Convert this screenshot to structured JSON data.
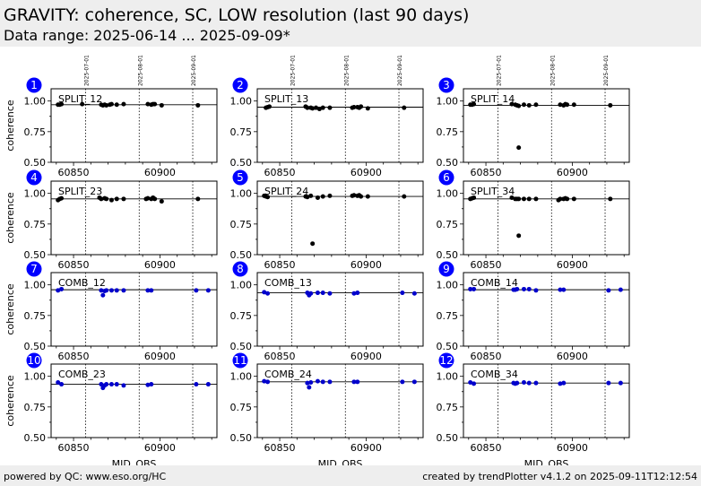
{
  "header": {
    "title": "GRAVITY: coherence, SC, LOW resolution (last 90 days)",
    "subtitle": "Data range: 2025-06-14 ... 2025-09-09*"
  },
  "footer": {
    "left": "powered by QC: www.eso.org/HC",
    "right": "created by trendPlotter v4.1.2 on 2025-09-11T12:12:54"
  },
  "colors": {
    "split": "#000000",
    "comb": "#0000cc",
    "badge": "#0000ff"
  },
  "chart_data": {
    "type": "scatter",
    "xlabel": "MJD_OBS",
    "ylabel": "coherence",
    "xlim": [
      60837,
      60933
    ],
    "ylim": [
      0.5,
      1.1
    ],
    "xticks": [
      60850,
      60900
    ],
    "yticks": [
      0.5,
      0.75,
      1.0
    ],
    "ytick_labels": [
      "0.50",
      "0.75",
      "1.00"
    ],
    "date_markers": [
      {
        "label": "2025-07-01",
        "mjd": 60857
      },
      {
        "label": "2025-08-01",
        "mjd": 60888
      },
      {
        "label": "2025-09-01",
        "mjd": 60919
      }
    ],
    "panels": [
      {
        "number": "1",
        "name": "SPLIT_12",
        "ref": 0.97,
        "points": [
          [
            60841,
            0.97
          ],
          [
            60842,
            0.97
          ],
          [
            60843,
            0.975
          ],
          [
            60855,
            0.975
          ],
          [
            60866,
            0.97
          ],
          [
            60867,
            0.965
          ],
          [
            60868,
            0.97
          ],
          [
            60869,
            0.965
          ],
          [
            60871,
            0.97
          ],
          [
            60872,
            0.975
          ],
          [
            60875,
            0.97
          ],
          [
            60879,
            0.975
          ],
          [
            60893,
            0.975
          ],
          [
            60895,
            0.97
          ],
          [
            60896,
            0.975
          ],
          [
            60897,
            0.975
          ],
          [
            60901,
            0.965
          ],
          [
            60922,
            0.965
          ]
        ]
      },
      {
        "number": "2",
        "name": "SPLIT_13",
        "ref": 0.95,
        "points": [
          [
            60842,
            0.945
          ],
          [
            60843,
            0.95
          ],
          [
            60844,
            0.955
          ],
          [
            60865,
            0.955
          ],
          [
            60866,
            0.945
          ],
          [
            60868,
            0.945
          ],
          [
            60869,
            0.94
          ],
          [
            60871,
            0.945
          ],
          [
            60873,
            0.935
          ],
          [
            60875,
            0.945
          ],
          [
            60879,
            0.945
          ],
          [
            60892,
            0.945
          ],
          [
            60893,
            0.95
          ],
          [
            60895,
            0.95
          ],
          [
            60896,
            0.945
          ],
          [
            60897,
            0.955
          ],
          [
            60901,
            0.94
          ],
          [
            60922,
            0.945
          ]
        ]
      },
      {
        "number": "3",
        "name": "SPLIT_14",
        "ref": 0.965,
        "points": [
          [
            60841,
            0.97
          ],
          [
            60842,
            0.97
          ],
          [
            60843,
            0.975
          ],
          [
            60865,
            0.975
          ],
          [
            60867,
            0.97
          ],
          [
            60868,
            0.965
          ],
          [
            60869,
            0.96
          ],
          [
            60869,
            0.62
          ],
          [
            60872,
            0.97
          ],
          [
            60875,
            0.965
          ],
          [
            60879,
            0.97
          ],
          [
            60893,
            0.97
          ],
          [
            60895,
            0.965
          ],
          [
            60896,
            0.975
          ],
          [
            60897,
            0.97
          ],
          [
            60901,
            0.97
          ],
          [
            60922,
            0.965
          ]
        ]
      },
      {
        "number": "4",
        "name": "SPLIT_23",
        "ref": 0.955,
        "points": [
          [
            60841,
            0.945
          ],
          [
            60842,
            0.955
          ],
          [
            60843,
            0.96
          ],
          [
            60865,
            0.965
          ],
          [
            60866,
            0.955
          ],
          [
            60868,
            0.96
          ],
          [
            60869,
            0.955
          ],
          [
            60872,
            0.945
          ],
          [
            60875,
            0.955
          ],
          [
            60879,
            0.955
          ],
          [
            60892,
            0.955
          ],
          [
            60893,
            0.96
          ],
          [
            60895,
            0.955
          ],
          [
            60896,
            0.965
          ],
          [
            60897,
            0.955
          ],
          [
            60901,
            0.935
          ],
          [
            60922,
            0.955
          ]
        ]
      },
      {
        "number": "5",
        "name": "SPLIT_24",
        "ref": 0.975,
        "points": [
          [
            60841,
            0.98
          ],
          [
            60842,
            0.975
          ],
          [
            60843,
            0.97
          ],
          [
            60865,
            0.975
          ],
          [
            60866,
            0.97
          ],
          [
            60868,
            0.98
          ],
          [
            60869,
            0.59
          ],
          [
            60872,
            0.965
          ],
          [
            60875,
            0.975
          ],
          [
            60879,
            0.98
          ],
          [
            60892,
            0.98
          ],
          [
            60893,
            0.985
          ],
          [
            60895,
            0.98
          ],
          [
            60896,
            0.985
          ],
          [
            60897,
            0.975
          ],
          [
            60901,
            0.975
          ],
          [
            60922,
            0.975
          ]
        ]
      },
      {
        "number": "6",
        "name": "SPLIT_34",
        "ref": 0.955,
        "points": [
          [
            60841,
            0.955
          ],
          [
            60842,
            0.96
          ],
          [
            60843,
            0.965
          ],
          [
            60865,
            0.965
          ],
          [
            60867,
            0.955
          ],
          [
            60868,
            0.955
          ],
          [
            60869,
            0.955
          ],
          [
            60869,
            0.655
          ],
          [
            60872,
            0.955
          ],
          [
            60875,
            0.955
          ],
          [
            60879,
            0.955
          ],
          [
            60892,
            0.945
          ],
          [
            60893,
            0.955
          ],
          [
            60895,
            0.955
          ],
          [
            60896,
            0.96
          ],
          [
            60897,
            0.955
          ],
          [
            60901,
            0.955
          ],
          [
            60922,
            0.955
          ]
        ]
      },
      {
        "number": "7",
        "name": "COMB_12",
        "ref": 0.96,
        "points": [
          [
            60841,
            0.955
          ],
          [
            60843,
            0.965
          ],
          [
            60866,
            0.955
          ],
          [
            60867,
            0.915
          ],
          [
            60868,
            0.95
          ],
          [
            60869,
            0.955
          ],
          [
            60872,
            0.955
          ],
          [
            60875,
            0.955
          ],
          [
            60879,
            0.955
          ],
          [
            60893,
            0.955
          ],
          [
            60895,
            0.955
          ],
          [
            60921,
            0.955
          ],
          [
            60928,
            0.955
          ]
        ]
      },
      {
        "number": "8",
        "name": "COMB_13",
        "ref": 0.935,
        "points": [
          [
            60841,
            0.94
          ],
          [
            60843,
            0.93
          ],
          [
            60866,
            0.935
          ],
          [
            60867,
            0.915
          ],
          [
            60868,
            0.93
          ],
          [
            60872,
            0.935
          ],
          [
            60875,
            0.935
          ],
          [
            60879,
            0.93
          ],
          [
            60893,
            0.93
          ],
          [
            60895,
            0.935
          ],
          [
            60921,
            0.935
          ],
          [
            60928,
            0.93
          ]
        ]
      },
      {
        "number": "9",
        "name": "COMB_14",
        "ref": 0.96,
        "points": [
          [
            60841,
            0.965
          ],
          [
            60843,
            0.965
          ],
          [
            60866,
            0.96
          ],
          [
            60867,
            0.96
          ],
          [
            60868,
            0.965
          ],
          [
            60872,
            0.965
          ],
          [
            60875,
            0.965
          ],
          [
            60879,
            0.955
          ],
          [
            60893,
            0.96
          ],
          [
            60895,
            0.96
          ],
          [
            60921,
            0.955
          ],
          [
            60928,
            0.96
          ]
        ]
      },
      {
        "number": "10",
        "name": "COMB_23",
        "ref": 0.935,
        "points": [
          [
            60841,
            0.95
          ],
          [
            60843,
            0.935
          ],
          [
            60866,
            0.935
          ],
          [
            60867,
            0.905
          ],
          [
            60868,
            0.925
          ],
          [
            60869,
            0.935
          ],
          [
            60872,
            0.935
          ],
          [
            60875,
            0.935
          ],
          [
            60879,
            0.925
          ],
          [
            60893,
            0.93
          ],
          [
            60895,
            0.935
          ],
          [
            60921,
            0.935
          ],
          [
            60928,
            0.935
          ]
        ]
      },
      {
        "number": "11",
        "name": "COMB_24",
        "ref": 0.955,
        "points": [
          [
            60841,
            0.96
          ],
          [
            60843,
            0.955
          ],
          [
            60866,
            0.945
          ],
          [
            60867,
            0.91
          ],
          [
            60868,
            0.95
          ],
          [
            60872,
            0.96
          ],
          [
            60875,
            0.955
          ],
          [
            60879,
            0.955
          ],
          [
            60893,
            0.955
          ],
          [
            60895,
            0.955
          ],
          [
            60921,
            0.955
          ],
          [
            60928,
            0.955
          ]
        ]
      },
      {
        "number": "12",
        "name": "COMB_34",
        "ref": 0.945,
        "points": [
          [
            60841,
            0.95
          ],
          [
            60843,
            0.94
          ],
          [
            60866,
            0.945
          ],
          [
            60867,
            0.94
          ],
          [
            60868,
            0.945
          ],
          [
            60872,
            0.95
          ],
          [
            60875,
            0.945
          ],
          [
            60879,
            0.945
          ],
          [
            60893,
            0.94
          ],
          [
            60895,
            0.945
          ],
          [
            60921,
            0.945
          ],
          [
            60928,
            0.945
          ]
        ]
      }
    ]
  }
}
